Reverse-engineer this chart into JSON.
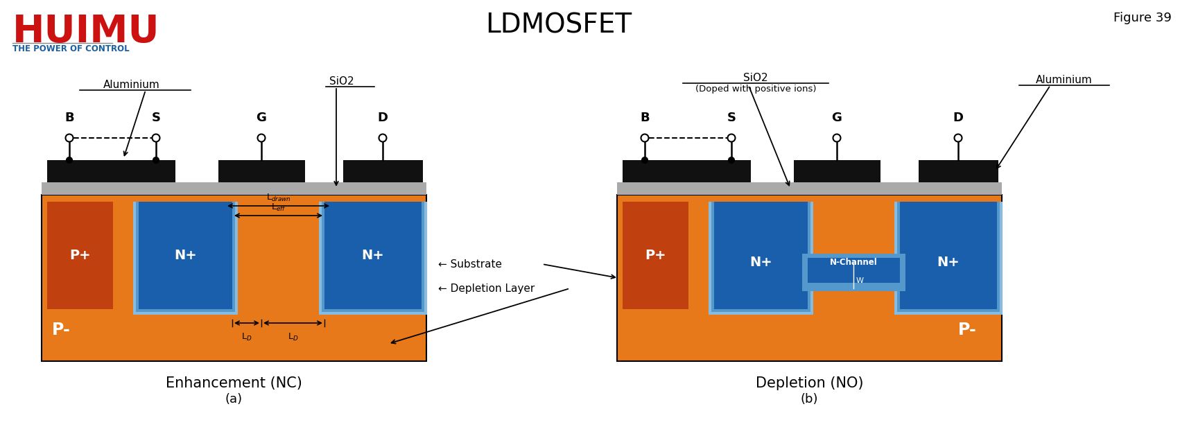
{
  "title": "LDMOSFET",
  "figure_label": "Figure 39",
  "colors": {
    "orange": "#E8791A",
    "blue": "#1A5FAB",
    "light_blue": "#5599CC",
    "lighter_blue": "#88BBDD",
    "black": "#111111",
    "dark_gray": "#555555",
    "gray": "#AAAAAA",
    "white": "#FFFFFF",
    "huimu_red": "#CC1111",
    "huimu_blue": "#1A60A0",
    "p_plus_red": "#C04010"
  },
  "diagram_a": {
    "label": "Enhancement (NC)",
    "sublabel": "(a)"
  },
  "diagram_b": {
    "label": "Depletion (NO)",
    "sublabel": "(b)"
  }
}
